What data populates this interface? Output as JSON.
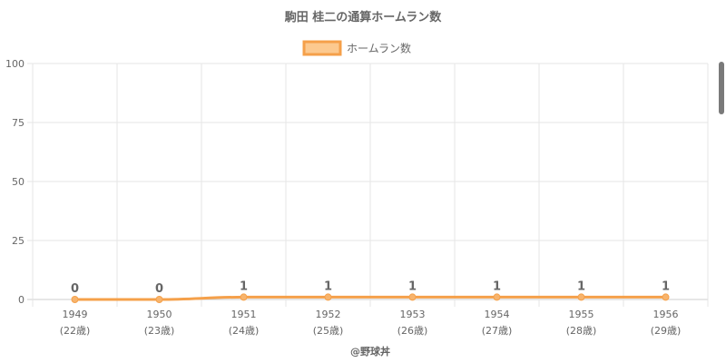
{
  "chart_data": {
    "type": "line",
    "title": "駒田 桂二の通算ホームラン数",
    "categories": [
      "1949",
      "1950",
      "1951",
      "1952",
      "1953",
      "1954",
      "1955",
      "1956"
    ],
    "sublabels": [
      "(22歳)",
      "(23歳)",
      "(24歳)",
      "(25歳)",
      "(26歳)",
      "(27歳)",
      "(28歳)",
      "(29歳)"
    ],
    "series": [
      {
        "name": "ホームラン数",
        "values": [
          0,
          0,
          1,
          1,
          1,
          1,
          1,
          1
        ]
      }
    ],
    "ylim": [
      0,
      100
    ],
    "yticks": [
      "0",
      "25",
      "50",
      "75",
      "100"
    ],
    "grid": true,
    "legend_position": "top-center",
    "colors": {
      "line": "#f5a04a",
      "fill": "#fcc98f",
      "point": "#f7b46d",
      "grid": "#e5e5e5"
    }
  },
  "footer": {
    "credit": "@野球丼"
  }
}
